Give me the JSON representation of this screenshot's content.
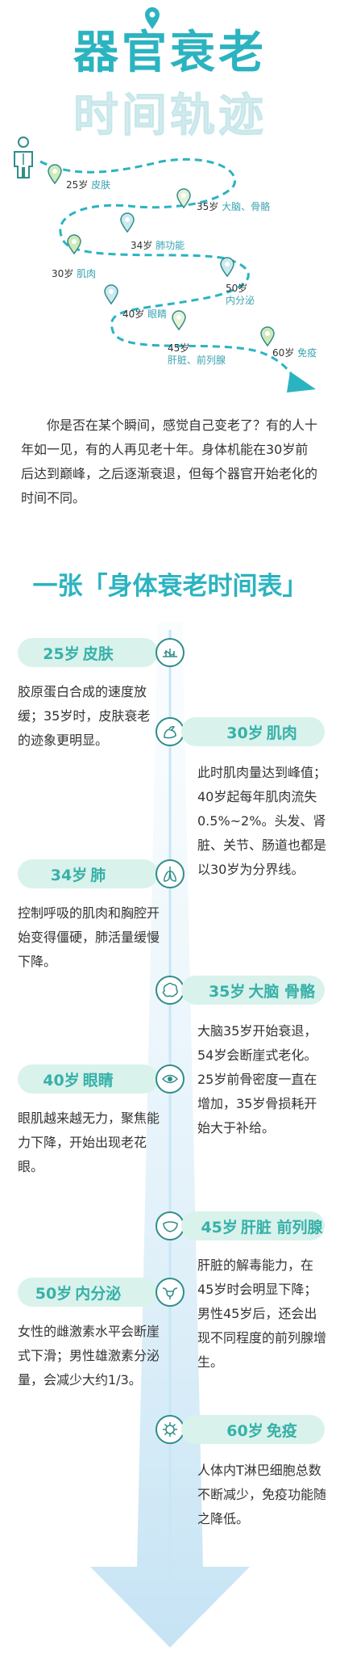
{
  "header": {
    "title_line1": "器官衰老",
    "title_line2": "时间轨迹"
  },
  "map": {
    "stops": [
      {
        "age": "25岁",
        "organ": "皮肤"
      },
      {
        "age": "35岁",
        "organ": "大脑、骨骼"
      },
      {
        "age": "34岁",
        "organ": "肺功能"
      },
      {
        "age": "30岁",
        "organ": "肌肉"
      },
      {
        "age": "50岁",
        "organ": "内分泌"
      },
      {
        "age": "40岁",
        "organ": "眼睛"
      },
      {
        "age": "45岁",
        "organ": "肝脏、前列腺"
      },
      {
        "age": "60岁",
        "organ": "免疫"
      }
    ]
  },
  "intro": "你是否在某个瞬间，感觉自己变老了？有的人十年如一见，有的人再见老十年。身体机能在30岁前后达到巅峰，之后逐渐衰退，但每个器官开始老化的时间不同。",
  "section_title": "一张「身体衰老时间表」",
  "timeline": [
    {
      "age": "25岁",
      "organ": "皮肤",
      "icon": "skin-icon",
      "desc": "胶原蛋白合成的速度放缓；35岁时，皮肤衰老的迹象更明显。"
    },
    {
      "age": "30岁",
      "organ": "肌肉",
      "icon": "muscle-icon",
      "desc": "此时肌肉量达到峰值；40岁起每年肌肉流失0.5%~2%。头发、肾脏、关节、肠道也都是以30岁为分界线。"
    },
    {
      "age": "34岁",
      "organ": "肺",
      "icon": "lung-icon",
      "desc": "控制呼吸的肌肉和胸腔开始变得僵硬，肺活量缓慢下降。"
    },
    {
      "age": "35岁",
      "organ": "大脑 骨骼",
      "icon": "brain-icon",
      "desc": "大脑35岁开始衰退，54岁会断崖式老化。25岁前骨密度一直在增加，35岁骨损耗开始大于补给。"
    },
    {
      "age": "40岁",
      "organ": "眼睛",
      "icon": "eye-icon",
      "desc": "眼肌越来越无力，聚焦能力下降，开始出现老花眼。"
    },
    {
      "age": "45岁",
      "organ": "肝脏 前列腺",
      "icon": "liver-icon",
      "desc": "肝脏的解毒能力，在45岁时会明显下降；男性45岁后，还会出现不同程度的前列腺增生。"
    },
    {
      "age": "50岁",
      "organ": "内分泌",
      "icon": "uterus-icon",
      "desc": "女性的雌激素水平会断崖式下滑；男性雄激素分泌量，会减少大约1/3。"
    },
    {
      "age": "60岁",
      "organ": "免疫",
      "icon": "virus-icon",
      "desc": "人体内T淋巴细胞总数不断减少，免疫功能随之降低。"
    }
  ],
  "colors": {
    "accent": "#2bb3c0",
    "pill": "#d9f2ec",
    "pill_text": "#36b1a8",
    "line": "#c8e6f5"
  }
}
